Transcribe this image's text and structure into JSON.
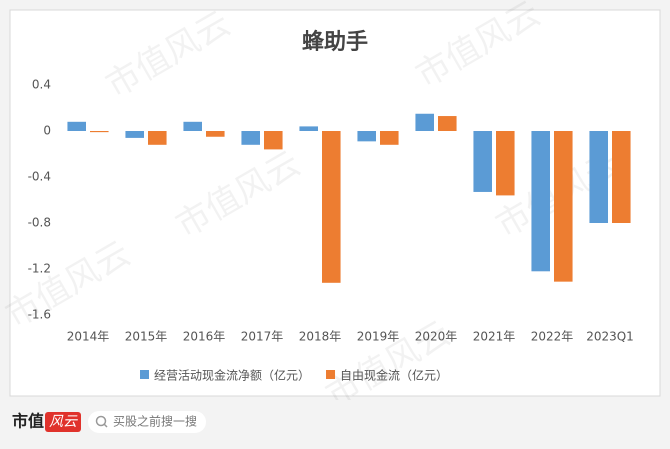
{
  "chart_data": {
    "type": "bar",
    "title": "蜂助手",
    "categories": [
      "2014年",
      "2015年",
      "2016年",
      "2017年",
      "2018年",
      "2019年",
      "2020年",
      "2021年",
      "2022年",
      "2023Q1"
    ],
    "series": [
      {
        "name": "经营活动现金流净额（亿元）",
        "color": "#5b9bd5",
        "values": [
          0.08,
          -0.06,
          0.08,
          -0.12,
          0.04,
          -0.09,
          0.15,
          -0.53,
          -1.22,
          -0.8
        ]
      },
      {
        "name": "自由现金流（亿元）",
        "color": "#ed7d31",
        "values": [
          -0.01,
          -0.12,
          -0.05,
          -0.16,
          -1.32,
          -0.12,
          0.13,
          -0.56,
          -1.31,
          -0.8
        ]
      }
    ],
    "ylim": [
      -1.6,
      0.4
    ],
    "yticks": [
      0.4,
      0,
      -0.4,
      -0.8,
      -1.2,
      -1.6
    ],
    "legend": "bottom"
  },
  "watermark": "市值风云",
  "footer": {
    "brand_a": "市值",
    "brand_b": "风云",
    "search": "买股之前搜一搜"
  }
}
